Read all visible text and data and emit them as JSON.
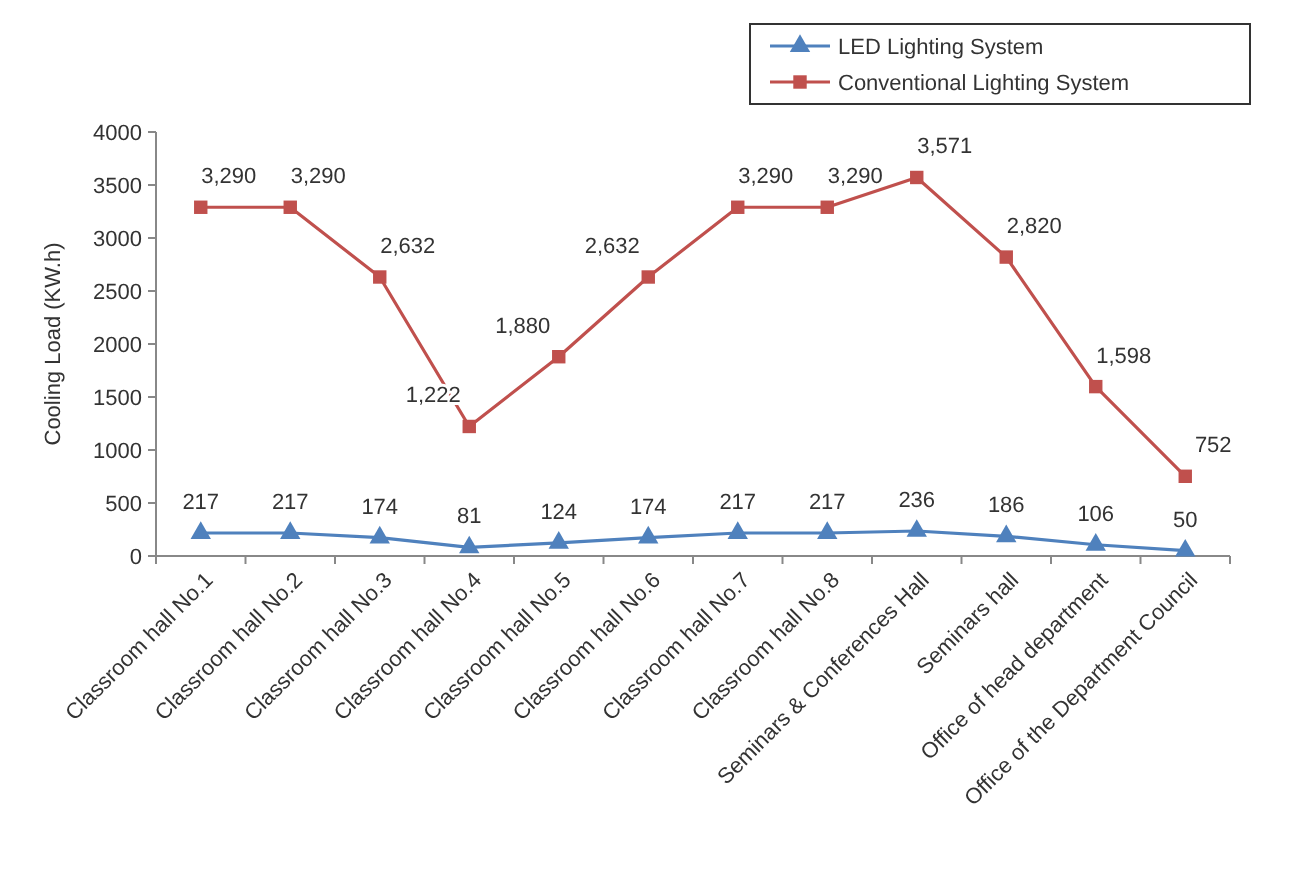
{
  "chart_data": {
    "type": "line",
    "ylabel": "Cooling Load (KW.h)",
    "ylim": [
      0,
      4000
    ],
    "yticks": [
      0,
      500,
      1000,
      1500,
      2000,
      2500,
      3000,
      3500,
      4000
    ],
    "grid": false,
    "legend": "top right",
    "categories": [
      "Classroom hall No.1",
      "Classroom hall No.2",
      "Classroom hall No.3",
      "Classroom hall No.4",
      "Classroom hall No.5",
      "Classroom hall No.6",
      "Classroom hall No.7",
      "Classroom hall No.8",
      "Seminars & Conferences Hall",
      "Seminars hall",
      "Office of head department",
      "Office of the Department Council"
    ],
    "series": [
      {
        "name": "LED Lighting System",
        "color": "#4f81bd",
        "marker": "triangle",
        "values": [
          217,
          217,
          174,
          81,
          124,
          174,
          217,
          217,
          236,
          186,
          106,
          50
        ],
        "value_labels": [
          "217",
          "217",
          "174",
          "81",
          "124",
          "174",
          "217",
          "217",
          "236",
          "186",
          "106",
          "50"
        ]
      },
      {
        "name": "Conventional Lighting System",
        "color": "#c0504d",
        "marker": "square",
        "values": [
          3290,
          3290,
          2632,
          1222,
          1880,
          2632,
          3290,
          3290,
          3571,
          2820,
          1598,
          752
        ],
        "value_labels": [
          "3,290",
          "3,290",
          "2,632",
          "1,222",
          "1,880",
          "2,632",
          "3,290",
          "3,290",
          "3,571",
          "2,820",
          "1,598",
          "752"
        ]
      }
    ]
  }
}
